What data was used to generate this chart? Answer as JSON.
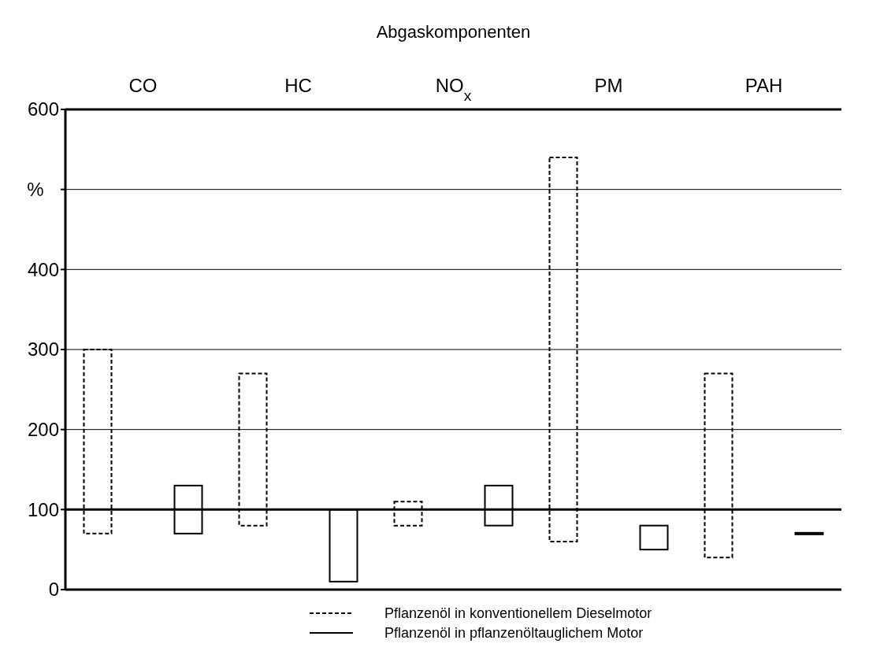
{
  "chart_data": {
    "type": "bar",
    "title": "Abgaskomponenten",
    "ylabel": "%",
    "categories": [
      "CO",
      "HC",
      "NO$_{x}$",
      "PM",
      "PAH"
    ],
    "series": [
      {
        "name": "Pflanzenöl in konventionellem Dieselmotor",
        "color": "#000000",
        "line_style": "dashed",
        "base": [
          70,
          80,
          80,
          60,
          40
        ],
        "values": [
          230,
          190,
          30,
          480,
          230
        ]
      },
      {
        "name": "Pflanzenöl in pflanzenöltauglichem Motor",
        "color": "#000000",
        "line_style": "solid",
        "base": [
          70,
          10,
          80,
          50,
          69
        ],
        "values": [
          60,
          90,
          50,
          30,
          2
        ]
      }
    ],
    "ylim": [
      0,
      600
    ],
    "yticks": [
      0,
      100,
      200,
      300,
      400,
      {
        "value": 500,
        "label": null
      },
      600
    ],
    "grid": "y",
    "legend": "bottom",
    "ref_lines": [
      {
        "axis": "y",
        "value": 100,
        "label": null
      }
    ]
  }
}
